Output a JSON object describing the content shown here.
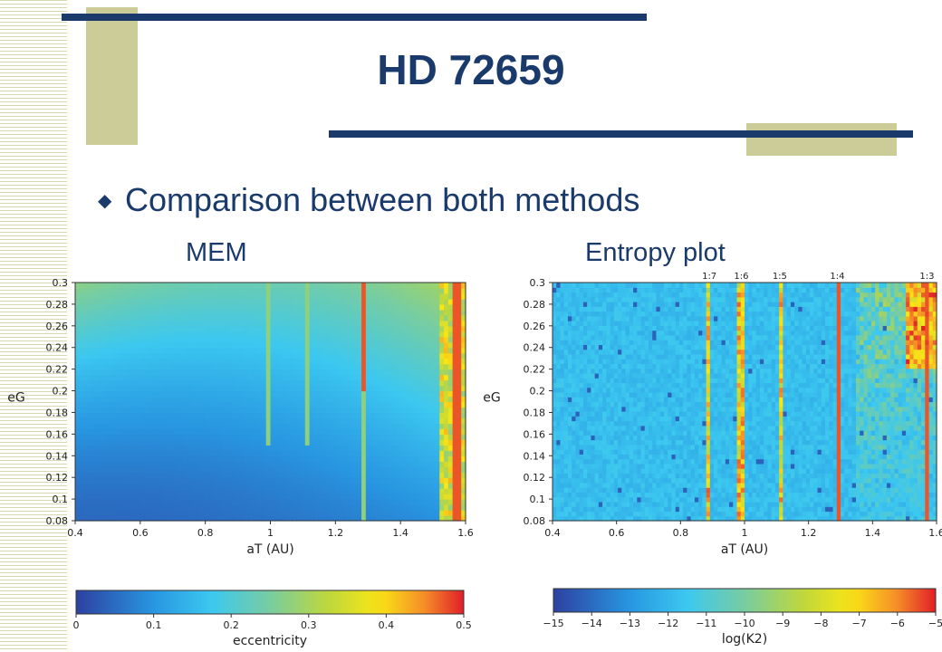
{
  "slide": {
    "title": "HD 72659",
    "bullet": "Comparison between both methods",
    "label_left": "MEM",
    "label_right": "Entropy plot"
  },
  "colors": {
    "deco_block": "#cccc99",
    "deco_line": "#1a3a6b",
    "title": "#1a3a6b"
  },
  "icons": {
    "bullet": "diamond-bullet-icon"
  },
  "chart_data": [
    {
      "type": "heatmap",
      "title": "",
      "xlabel": "aT (AU)",
      "ylabel": "eG",
      "xlim": [
        0.4,
        1.6
      ],
      "ylim": [
        0.08,
        0.3
      ],
      "x_ticks": [
        "0.4",
        "0.6",
        "0.8",
        "1",
        "1.2",
        "1.4",
        "1.6"
      ],
      "y_ticks": [
        "0.08",
        "0.1",
        "0.12",
        "0.14",
        "0.16",
        "0.18",
        "0.2",
        "0.22",
        "0.24",
        "0.26",
        "0.28",
        "0.3"
      ],
      "colorbar": {
        "label": "eccentricity",
        "ticks": [
          "0",
          "0.1",
          "0.2",
          "0.3",
          "0.4",
          "0.5"
        ],
        "range": [
          0,
          0.5
        ]
      },
      "vertical_features_x": [
        0.99,
        1.11,
        1.29,
        1.57
      ]
    },
    {
      "type": "heatmap",
      "title": "",
      "xlabel": "aT (AU)",
      "ylabel": "eG",
      "xlim": [
        0.4,
        1.6
      ],
      "ylim": [
        0.08,
        0.3
      ],
      "x_ticks": [
        "0.4",
        "0.6",
        "0.8",
        "1",
        "1.2",
        "1.4",
        "1.6"
      ],
      "y_ticks": [
        "0.08",
        "0.1",
        "0.12",
        "0.14",
        "0.16",
        "0.18",
        "0.2",
        "0.22",
        "0.24",
        "0.26",
        "0.28",
        "0.3"
      ],
      "resonances": [
        {
          "label": "1:7",
          "x": 0.89
        },
        {
          "label": "1:6",
          "x": 0.99
        },
        {
          "label": "1:5",
          "x": 1.11
        },
        {
          "label": "1:4",
          "x": 1.29
        },
        {
          "label": "1:3",
          "x": 1.57
        }
      ],
      "colorbar": {
        "label": "log(K2)",
        "ticks": [
          "−15",
          "−14",
          "−13",
          "−12",
          "−11",
          "−10",
          "−9",
          "−8",
          "−7",
          "−6",
          "−5"
        ],
        "range": [
          -15,
          -5
        ]
      }
    }
  ]
}
